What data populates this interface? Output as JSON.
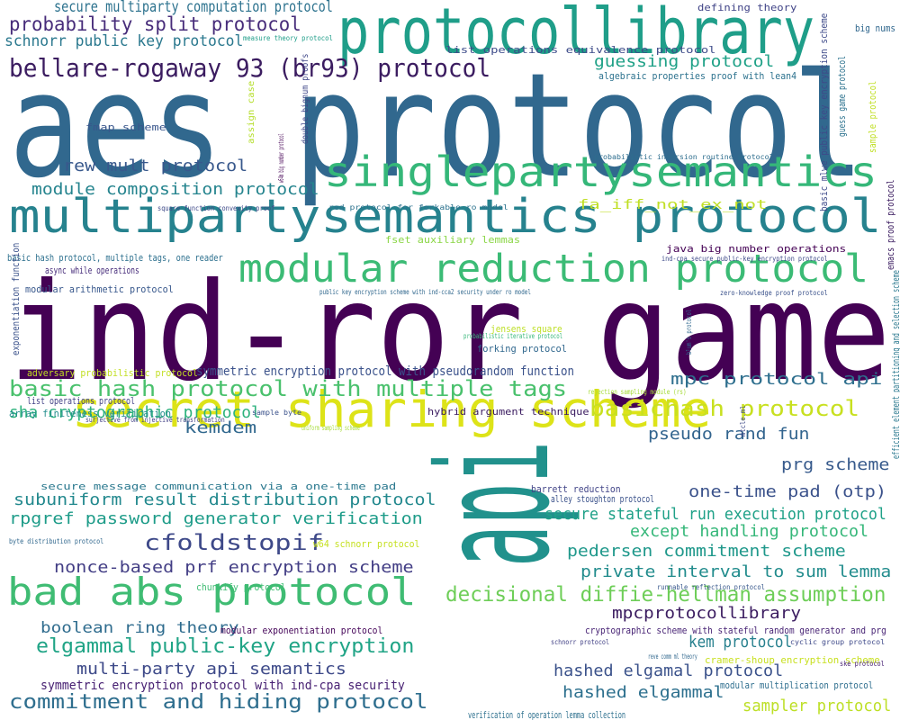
{
  "words": [
    {
      "text": "api",
      "color": "#21918c"
    },
    {
      "text": "aes protocol",
      "color": "#31688e"
    },
    {
      "text": "ind-ror game",
      "color": "#440154"
    },
    {
      "text": "protocollibrary",
      "color": "#1f9e89"
    },
    {
      "text": "multipartysemantics protocol",
      "color": "#26828e"
    },
    {
      "text": "secret sharing scheme",
      "color": "#dde318"
    },
    {
      "text": "singlepartysemantics",
      "color": "#35b779"
    },
    {
      "text": "modular reduction protocol",
      "color": "#3bbb75"
    },
    {
      "text": "bad abs protocol",
      "color": "#3fbc73"
    },
    {
      "text": "bellare-rogaway 93 (br93) protocol",
      "color": "#3b1c60"
    },
    {
      "text": "basic hash protocol with multiple tags",
      "color": "#4ac16d"
    },
    {
      "text": "basichash protocol",
      "color": "#c8e020"
    },
    {
      "text": "decisional diffie-hellman assumption",
      "color": "#6ece58"
    },
    {
      "text": "commitment and hiding protocol",
      "color": "#2e6e8e"
    },
    {
      "text": "elgammal public-key encryption",
      "color": "#20a486"
    },
    {
      "text": "probability split protocol",
      "color": "#472c7a"
    },
    {
      "text": "cfoldstopif",
      "color": "#3e4989"
    },
    {
      "text": "secure multiparty computation protocol",
      "color": "#2c728e"
    },
    {
      "text": "schnorr public key protocol",
      "color": "#2a788e"
    },
    {
      "text": "guessing protocol",
      "color": "#1fa187"
    },
    {
      "text": "rew mult protocol",
      "color": "#38588c"
    },
    {
      "text": "module composition protocol",
      "color": "#25848e"
    },
    {
      "text": "mpc protocol api",
      "color": "#2e6f8e"
    },
    {
      "text": "pseudo rand fun",
      "color": "#32648e"
    },
    {
      "text": "prg scheme",
      "color": "#375a8c"
    },
    {
      "text": "one-time pad (otp)",
      "color": "#3b528b"
    },
    {
      "text": "kemdem",
      "color": "#31688e"
    },
    {
      "text": "sha cryptographic protocol",
      "color": "#2db27d"
    },
    {
      "text": "subuniform result distribution protocol",
      "color": "#23898e"
    },
    {
      "text": "rpgref password generator verification",
      "color": "#1e9c89"
    },
    {
      "text": "nonce-based prf encryption scheme",
      "color": "#433e85"
    },
    {
      "text": "except handling protocol",
      "color": "#35b779"
    },
    {
      "text": "secure stateful run execution protocol",
      "color": "#1fa188"
    },
    {
      "text": "pedersen commitment scheme",
      "color": "#1f988b"
    },
    {
      "text": "private interval to sum lemma",
      "color": "#228c8d"
    },
    {
      "text": "mpcprotocollibrary",
      "color": "#3b1c60"
    },
    {
      "text": "kem protocol",
      "color": "#27808e"
    },
    {
      "text": "boolean ring theory",
      "color": "#2f6c8e"
    },
    {
      "text": "multi-party api semantics",
      "color": "#3e4a89"
    },
    {
      "text": "hashed elgamal protocol",
      "color": "#3b528b"
    },
    {
      "text": "hashed elgammal",
      "color": "#2d708e"
    },
    {
      "text": "sampler protocol",
      "color": "#bddf26"
    },
    {
      "text": "symmetric encryption protocol with ind-cpa security",
      "color": "#482173"
    },
    {
      "text": "symmetric encryption protocol with pseudorandom function",
      "color": "#3b528b"
    },
    {
      "text": "list operations equivalence protocol",
      "color": "#3e4c8a"
    },
    {
      "text": "defining theory",
      "color": "#414487"
    },
    {
      "text": "measure theory protocol",
      "color": "#1f9e89"
    },
    {
      "text": "algebraic properties proof with lean4",
      "color": "#2c728e"
    },
    {
      "text": "fmap scheme",
      "color": "#39568c"
    },
    {
      "text": "double bignum proofs",
      "color": "#3f4788"
    },
    {
      "text": "assign case",
      "color": "#b5de2b"
    },
    {
      "text": "probabilistic inversion routine protocol",
      "color": "#2e6e8e"
    },
    {
      "text": "square function convexity proof",
      "color": "#3e4989"
    },
    {
      "text": "red protocol for forkable ro model",
      "color": "#2c728e"
    },
    {
      "text": "fa_iff_not_ex_not",
      "color": "#c0df25"
    },
    {
      "text": "fset auxiliary lemmas",
      "color": "#8bd646"
    },
    {
      "text": "java big number operations",
      "color": "#440154"
    },
    {
      "text": "ind-cpa secure public-key encryption protocol",
      "color": "#3e4a89"
    },
    {
      "text": "basic hash protocol, multiple tags, one reader",
      "color": "#2d708e"
    },
    {
      "text": "async while operations",
      "color": "#472d7b"
    },
    {
      "text": "modular arithmetic protocol",
      "color": "#38588c"
    },
    {
      "text": "public key encryption scheme with ind-cca2 security under ro model",
      "color": "#31688e"
    },
    {
      "text": "zero-knowledge proof protocol",
      "color": "#3b528b"
    },
    {
      "text": "jensens square",
      "color": "#bddf26"
    },
    {
      "text": "probabilistic iterative protocol",
      "color": "#35b779"
    },
    {
      "text": "forking protocol",
      "color": "#31688e"
    },
    {
      "text": "adversary probabilistic protocol",
      "color": "#c2df23"
    },
    {
      "text": "list operations protocol",
      "color": "#424186"
    },
    {
      "text": "sample byte",
      "color": "#3b528b"
    },
    {
      "text": "uniform sampling scheme",
      "color": "#a5db36"
    },
    {
      "text": "surjective from injective transformation",
      "color": "#424186"
    },
    {
      "text": "array finiteness verification",
      "color": "#228c8d"
    },
    {
      "text": "hybrid argument technique",
      "color": "#3b1c60"
    },
    {
      "text": "rejection sampling module (rs)",
      "color": "#a5db36"
    },
    {
      "text": "secure message communication via a one-time pad",
      "color": "#2a788e"
    },
    {
      "text": "barrett reduction",
      "color": "#414487"
    },
    {
      "text": "alley stoughton protocol",
      "color": "#3b528b"
    },
    {
      "text": "byte distribution protocol",
      "color": "#31688e"
    },
    {
      "text": "w64 schnorr protocol",
      "color": "#c5e021"
    },
    {
      "text": "chunkify protocol",
      "color": "#3fbc73"
    },
    {
      "text": "runnable reflection protocol",
      "color": "#38588c"
    },
    {
      "text": "modular exponentiation protocol",
      "color": "#450559"
    },
    {
      "text": "cryptographic scheme with stateful random generator and prg",
      "color": "#482475"
    },
    {
      "text": "schnorr protocol",
      "color": "#424186"
    },
    {
      "text": "reve comm ml theory",
      "color": "#31688e"
    },
    {
      "text": "cyclic group protocol",
      "color": "#3e4989"
    },
    {
      "text": "cramer-shoup encryption scheme",
      "color": "#c8e020"
    },
    {
      "text": "ske protocol",
      "color": "#482173"
    },
    {
      "text": "modular multiplication protocol",
      "color": "#2e6e8e"
    },
    {
      "text": "verification of operation lemma collection",
      "color": "#2d708e"
    },
    {
      "text": "big nums",
      "color": "#31688e"
    },
    {
      "text": "guess game protocol",
      "color": "#2c728e"
    },
    {
      "text": "basic mlwe public key encryption scheme",
      "color": "#3e4a89"
    },
    {
      "text": "sample protocol",
      "color": "#c0df25"
    },
    {
      "text": "emacs proof protocol",
      "color": "#3b1c60"
    },
    {
      "text": "efficient element partitioning and selection scheme",
      "color": "#2a788e"
    },
    {
      "text": "blum's protocol",
      "color": "#31688e"
    },
    {
      "text": "exponentiation function",
      "color": "#3b528b"
    },
    {
      "text": "w64m big number protocol",
      "color": "#440154"
    },
    {
      "text": "mtcle.ml",
      "color": "#3e4989"
    }
  ]
}
